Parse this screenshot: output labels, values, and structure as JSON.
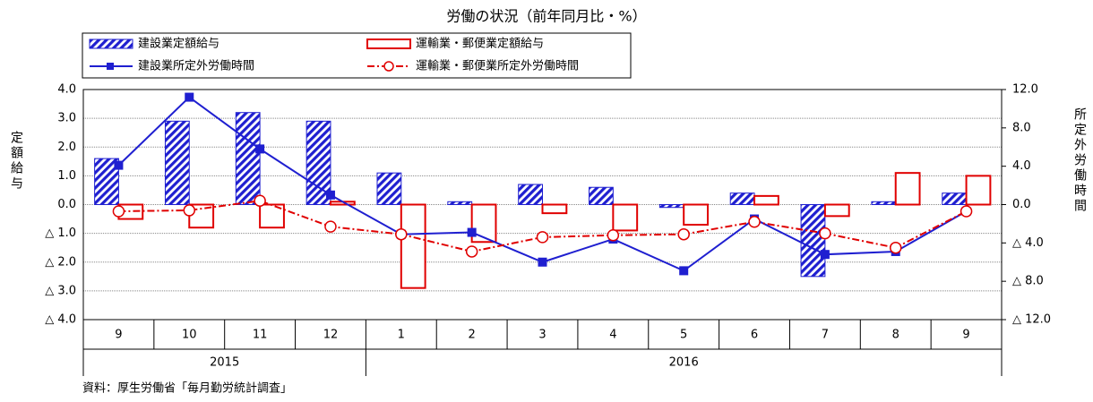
{
  "chart_data": {
    "type": "bar_line",
    "title": "労働の状況（前年同月比・%）",
    "y_label": "定額給与",
    "y2_label": "所定外労働時間",
    "source": "資料：厚生労働省「毎月勤労統計調査」",
    "categories": [
      "9",
      "10",
      "11",
      "12",
      "1",
      "2",
      "3",
      "4",
      "5",
      "6",
      "7",
      "8",
      "9"
    ],
    "x_groups": [
      {
        "label": "2015",
        "count": 4
      },
      {
        "label": "2016",
        "count": 9
      }
    ],
    "ylim": [
      -4,
      4
    ],
    "yticks": [
      {
        "value": 4,
        "label": "4.0"
      },
      {
        "value": 3,
        "label": "3.0"
      },
      {
        "value": 2,
        "label": "2.0"
      },
      {
        "value": 1,
        "label": "1.0"
      },
      {
        "value": 0,
        "label": "0.0"
      },
      {
        "value": -1,
        "label": "△ 1.0"
      },
      {
        "value": -2,
        "label": "△ 2.0"
      },
      {
        "value": -3,
        "label": "△ 3.0"
      },
      {
        "value": -4,
        "label": "△ 4.0"
      }
    ],
    "y2lim": [
      -12,
      12
    ],
    "y2ticks": [
      {
        "value": 12,
        "label": "12.0"
      },
      {
        "value": 8,
        "label": "8.0"
      },
      {
        "value": 4,
        "label": "4.0"
      },
      {
        "value": 0,
        "label": "0.0"
      },
      {
        "value": -4,
        "label": "△ 4.0"
      },
      {
        "value": -8,
        "label": "△ 8.0"
      },
      {
        "value": -12,
        "label": "△ 12.0"
      }
    ],
    "grid": true,
    "legend": "top",
    "series": [
      {
        "name": "建設業定額給与",
        "kind": "bar",
        "style": "hatched",
        "color": "#1f1fd0",
        "values": [
          1.6,
          2.9,
          3.2,
          2.9,
          1.1,
          0.1,
          0.7,
          0.6,
          -0.1,
          0.4,
          -2.5,
          0.1,
          0.4
        ]
      },
      {
        "name": "運輸業・郵便業定額給与",
        "kind": "bar",
        "style": "outline",
        "color": "#e00000",
        "values": [
          -0.5,
          -0.8,
          -0.8,
          0.1,
          -2.9,
          -1.3,
          -0.3,
          -0.9,
          -0.7,
          0.3,
          -0.4,
          1.1,
          1.0
        ]
      },
      {
        "name": "建設業所定外労働時間",
        "kind": "line",
        "style": "square",
        "color": "#1f1fd0",
        "axis": "y2",
        "values": [
          4.1,
          11.2,
          5.8,
          1.0,
          -3.1,
          -2.9,
          -6.0,
          -3.6,
          -6.9,
          -1.5,
          -5.2,
          -4.9,
          -0.7
        ]
      },
      {
        "name": "運輸業・郵便業所定外労働時間",
        "kind": "line",
        "style": "circle",
        "color": "#e00000",
        "axis": "y2",
        "values": [
          -0.7,
          -0.6,
          0.4,
          -2.3,
          -3.1,
          -4.9,
          -3.4,
          -3.2,
          -3.1,
          -1.8,
          -3.0,
          -4.5,
          -0.7
        ]
      }
    ]
  }
}
